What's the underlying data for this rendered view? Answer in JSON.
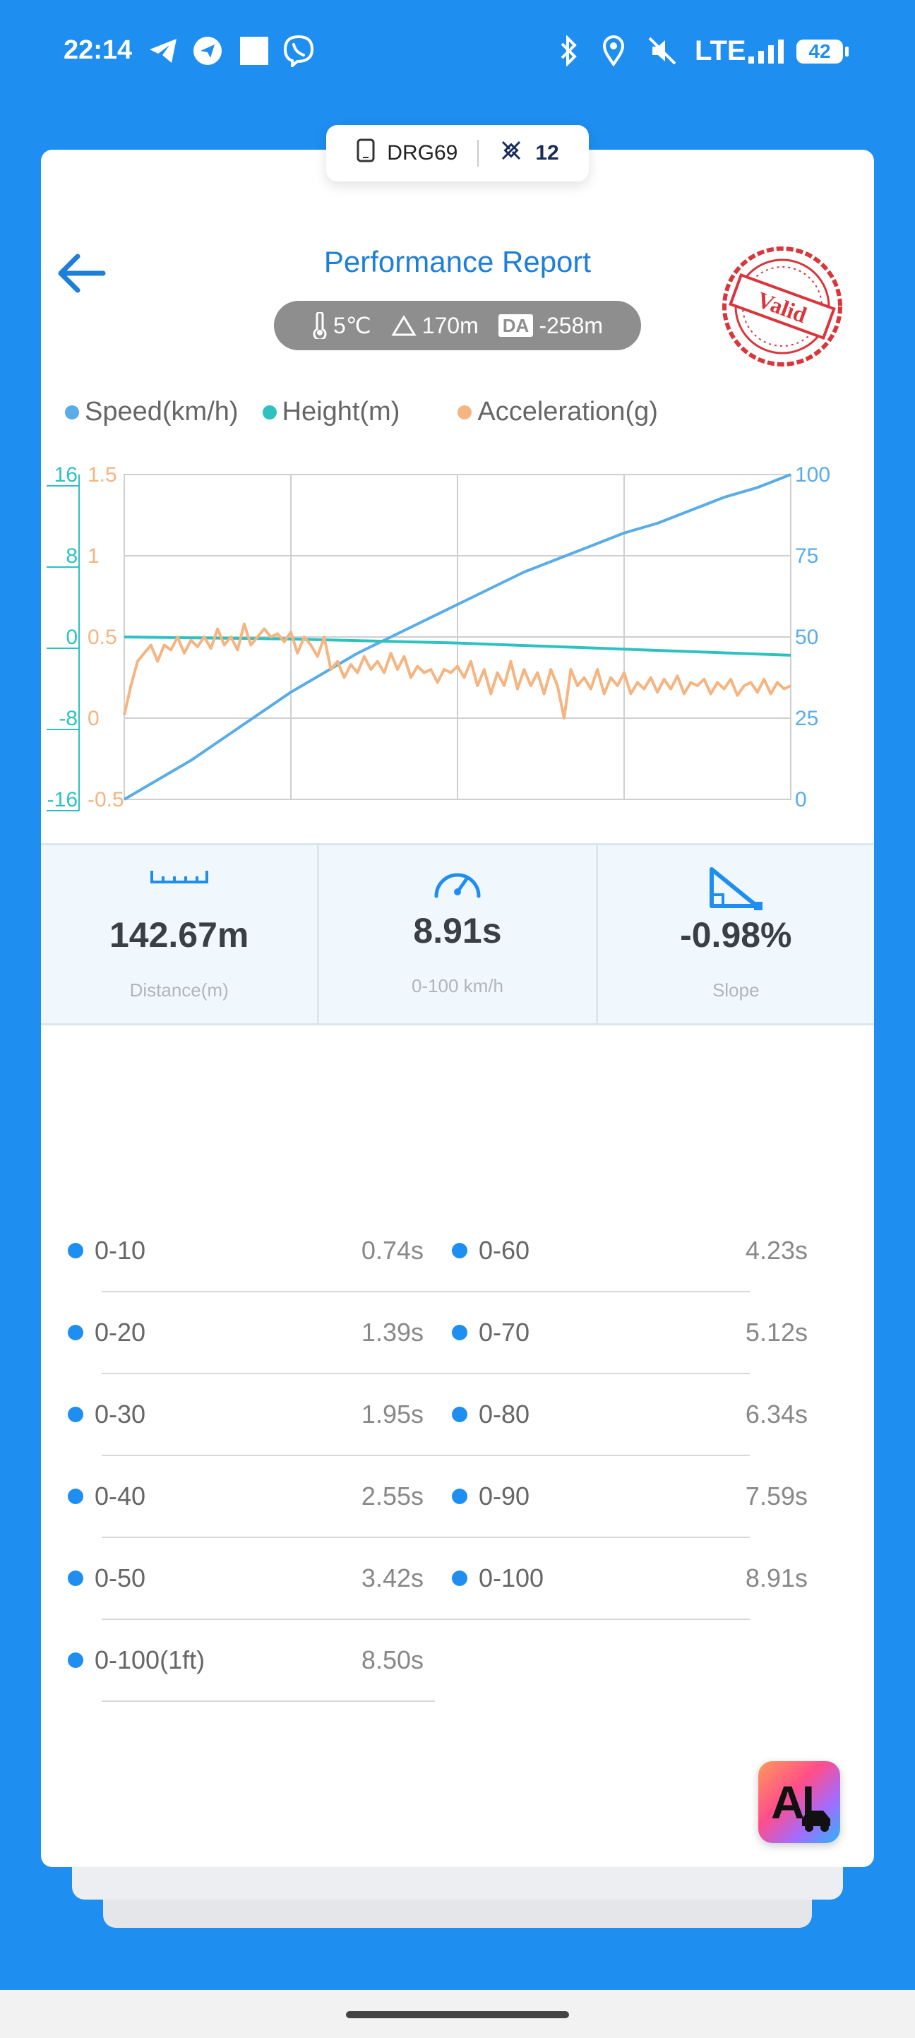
{
  "status_bar": {
    "time": "22:14",
    "network": "LTE",
    "battery": "42",
    "icons": [
      "telegram-icon",
      "navigation-icon",
      "square-icon",
      "viber-icon",
      "bluetooth-icon",
      "location-icon",
      "mute-icon",
      "signal-icon"
    ]
  },
  "device": {
    "name": "DRG69",
    "count": "12"
  },
  "header": {
    "title": "Performance Report",
    "temperature": "5℃",
    "altitude": "170m",
    "density_altitude_badge": "DA",
    "density_altitude": "-258m",
    "stamp_text": "Valid"
  },
  "legend": [
    {
      "label": "Speed(km/h)",
      "color": "#5aace8"
    },
    {
      "label": "Height(m)",
      "color": "#2dc2c0"
    },
    {
      "label": "Acceleration(g)",
      "color": "#f5b480"
    }
  ],
  "chart_data": {
    "type": "line",
    "x_gridlines": 4,
    "grid": true,
    "axes": {
      "height": {
        "ticks": [
          "16",
          "8",
          "0",
          "-8",
          "-16"
        ],
        "range": [
          -16,
          16
        ],
        "color": "#2dc2c0"
      },
      "acceleration": {
        "ticks": [
          "1.5",
          "1",
          "0.5",
          "0",
          "-0.5"
        ],
        "range": [
          -0.5,
          1.5
        ],
        "color": "#f5b480"
      },
      "speed": {
        "ticks": [
          "100",
          "75",
          "50",
          "25",
          "0"
        ],
        "range": [
          0,
          100
        ],
        "color": "#5aace8"
      }
    },
    "series": [
      {
        "name": "Speed(km/h)",
        "axis": "speed",
        "color": "#5aace8",
        "x": [
          0,
          0.05,
          0.1,
          0.15,
          0.2,
          0.25,
          0.3,
          0.35,
          0.4,
          0.45,
          0.5,
          0.55,
          0.6,
          0.65,
          0.7,
          0.75,
          0.8,
          0.85,
          0.9,
          0.95,
          1.0
        ],
        "values": [
          0,
          6,
          12,
          19,
          26,
          33,
          39,
          45,
          50,
          55,
          60,
          65,
          70,
          74,
          78,
          82,
          85,
          89,
          93,
          96,
          100
        ]
      },
      {
        "name": "Height(m)",
        "axis": "height",
        "color": "#2dc2c0",
        "x": [
          0,
          0.25,
          0.5,
          0.75,
          1.0
        ],
        "values": [
          0,
          -0.2,
          -0.6,
          -1.2,
          -1.8
        ]
      },
      {
        "name": "Acceleration(g)",
        "axis": "acceleration",
        "color": "#f5b480",
        "x": [
          0,
          0.01,
          0.02,
          0.03,
          0.04,
          0.05,
          0.06,
          0.07,
          0.08,
          0.09,
          0.1,
          0.11,
          0.12,
          0.13,
          0.14,
          0.15,
          0.16,
          0.17,
          0.18,
          0.19,
          0.2,
          0.21,
          0.22,
          0.23,
          0.24,
          0.25,
          0.26,
          0.27,
          0.28,
          0.29,
          0.3,
          0.31,
          0.32,
          0.33,
          0.34,
          0.35,
          0.36,
          0.37,
          0.38,
          0.39,
          0.4,
          0.41,
          0.42,
          0.43,
          0.44,
          0.45,
          0.46,
          0.47,
          0.48,
          0.49,
          0.5,
          0.51,
          0.52,
          0.53,
          0.54,
          0.55,
          0.56,
          0.57,
          0.58,
          0.59,
          0.6,
          0.61,
          0.62,
          0.63,
          0.64,
          0.65,
          0.66,
          0.67,
          0.68,
          0.69,
          0.7,
          0.71,
          0.72,
          0.73,
          0.74,
          0.75,
          0.76,
          0.77,
          0.78,
          0.79,
          0.8,
          0.81,
          0.82,
          0.83,
          0.84,
          0.85,
          0.86,
          0.87,
          0.88,
          0.89,
          0.9,
          0.91,
          0.92,
          0.93,
          0.94,
          0.95,
          0.96,
          0.97,
          0.98,
          0.99,
          1.0
        ],
        "values": [
          0.02,
          0.2,
          0.35,
          0.4,
          0.45,
          0.35,
          0.45,
          0.42,
          0.5,
          0.4,
          0.48,
          0.44,
          0.5,
          0.43,
          0.55,
          0.45,
          0.5,
          0.42,
          0.58,
          0.45,
          0.5,
          0.55,
          0.5,
          0.52,
          0.47,
          0.53,
          0.4,
          0.5,
          0.45,
          0.38,
          0.5,
          0.3,
          0.35,
          0.25,
          0.33,
          0.28,
          0.38,
          0.3,
          0.35,
          0.28,
          0.4,
          0.3,
          0.38,
          0.25,
          0.32,
          0.28,
          0.3,
          0.22,
          0.3,
          0.28,
          0.32,
          0.25,
          0.35,
          0.2,
          0.3,
          0.15,
          0.28,
          0.2,
          0.35,
          0.18,
          0.3,
          0.2,
          0.28,
          0.15,
          0.3,
          0.2,
          0.0,
          0.3,
          0.2,
          0.25,
          0.18,
          0.3,
          0.15,
          0.25,
          0.2,
          0.28,
          0.15,
          0.22,
          0.18,
          0.25,
          0.16,
          0.24,
          0.18,
          0.26,
          0.15,
          0.22,
          0.2,
          0.24,
          0.15,
          0.22,
          0.18,
          0.24,
          0.14,
          0.2,
          0.22,
          0.16,
          0.24,
          0.15,
          0.22,
          0.18,
          0.2
        ]
      }
    ]
  },
  "stats": [
    {
      "value": "142.67m",
      "label": "Distance(m)",
      "icon": "ruler-icon"
    },
    {
      "value": "8.91s",
      "label": "0-100 km/h",
      "icon": "speedometer-icon"
    },
    {
      "value": "-0.98%",
      "label": "Slope",
      "icon": "slope-icon"
    }
  ],
  "splits_left": [
    {
      "name": "0-10",
      "time": "0.74s"
    },
    {
      "name": "0-20",
      "time": "1.39s"
    },
    {
      "name": "0-30",
      "time": "1.95s"
    },
    {
      "name": "0-40",
      "time": "2.55s"
    },
    {
      "name": "0-50",
      "time": "3.42s"
    },
    {
      "name": "0-100(1ft)",
      "time": "8.50s"
    }
  ],
  "splits_right": [
    {
      "name": "0-60",
      "time": "4.23s"
    },
    {
      "name": "0-70",
      "time": "5.12s"
    },
    {
      "name": "0-80",
      "time": "6.34s"
    },
    {
      "name": "0-90",
      "time": "7.59s"
    },
    {
      "name": "0-100",
      "time": "8.91s"
    }
  ],
  "ai_button": {
    "label": "AI"
  }
}
